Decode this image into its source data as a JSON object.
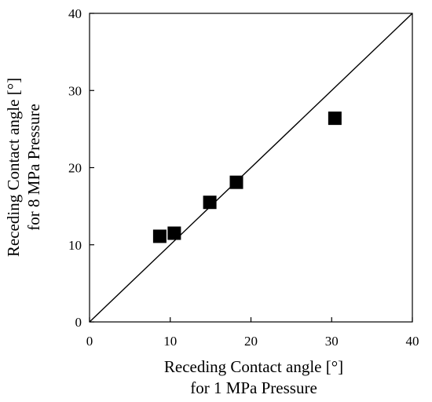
{
  "chart_data": {
    "type": "scatter",
    "title": "",
    "xlabel": [
      "Receding Contact angle [°]",
      "for 1 MPa Pressure"
    ],
    "ylabel": [
      "Receding Contact angle [°]",
      "for 8 MPa Pressure"
    ],
    "xlim": [
      0,
      40
    ],
    "ylim": [
      0,
      40
    ],
    "xticks": [
      "0",
      "10",
      "20",
      "30",
      "40"
    ],
    "yticks": [
      "0",
      "10",
      "20",
      "30",
      "40"
    ],
    "grid": false,
    "legend": "none",
    "marker": "square",
    "marker_color": "#000000",
    "reference_line": {
      "type": "y=x",
      "from": [
        0,
        0
      ],
      "to": [
        40,
        40
      ]
    },
    "series": [
      {
        "points": [
          {
            "x": 8.7,
            "y": 11.1
          },
          {
            "x": 10.5,
            "y": 11.5
          },
          {
            "x": 14.9,
            "y": 15.5
          },
          {
            "x": 18.2,
            "y": 18.1
          },
          {
            "x": 30.4,
            "y": 26.4
          }
        ]
      }
    ]
  }
}
